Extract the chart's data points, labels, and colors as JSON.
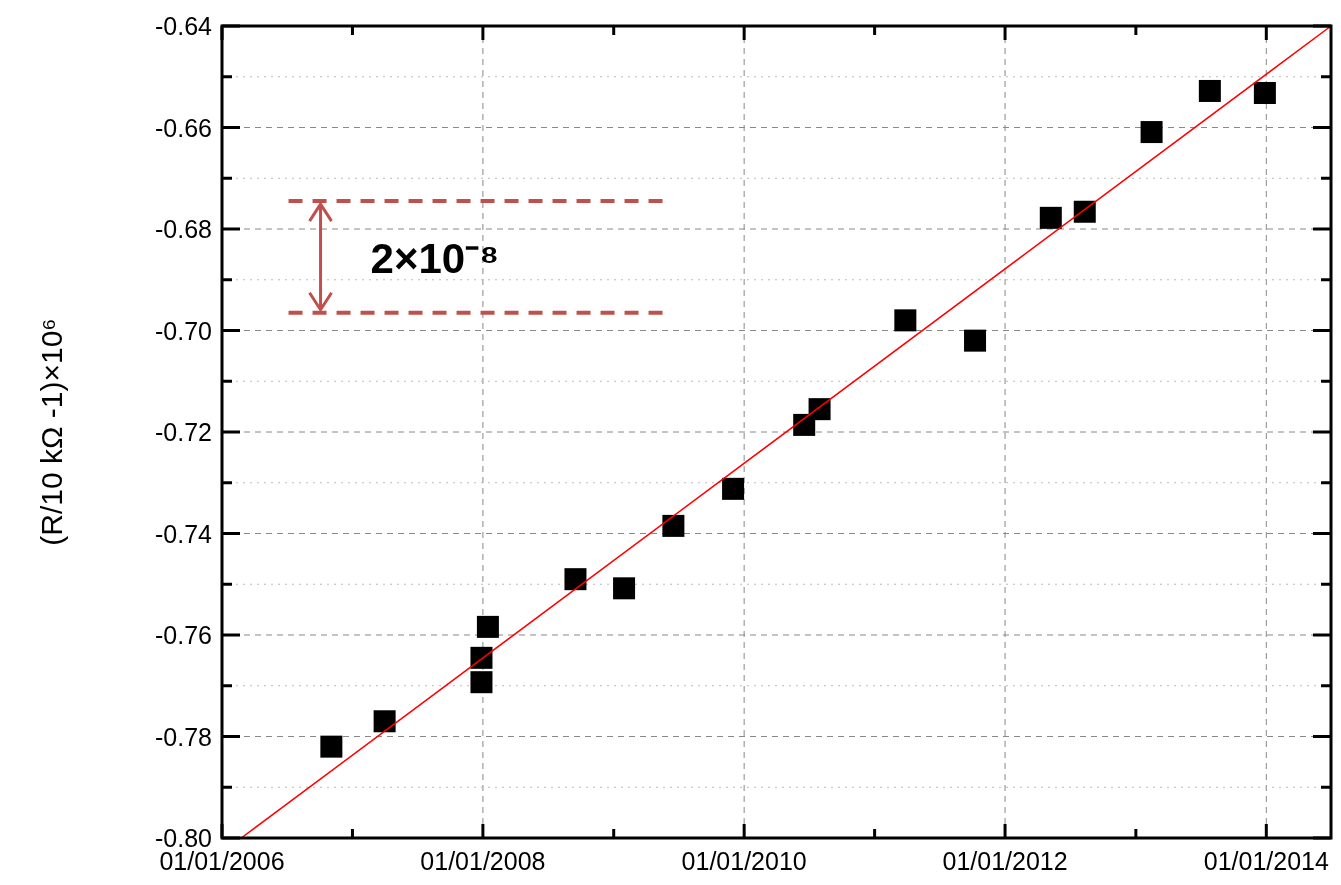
{
  "chart_data": {
    "type": "scatter",
    "ylabel": "(R/10 kΩ -1)×10⁶",
    "marker": "square",
    "grid": true,
    "xlim": [
      "2006-01-01",
      "2014-07-01"
    ],
    "xticks": [
      {
        "value": "2006-01-01",
        "label": "01/01/2006"
      },
      {
        "value": "2007-01-01",
        "label": null
      },
      {
        "value": "2008-01-01",
        "label": "01/01/2008"
      },
      {
        "value": "2009-01-01",
        "label": null
      },
      {
        "value": "2010-01-01",
        "label": "01/01/2010"
      },
      {
        "value": "2011-01-01",
        "label": null
      },
      {
        "value": "2012-01-01",
        "label": "01/01/2012"
      },
      {
        "value": "2013-01-01",
        "label": null
      },
      {
        "value": "2014-01-01",
        "label": "01/01/2014"
      }
    ],
    "ylim": [
      -0.8,
      -0.64
    ],
    "yticks": [
      {
        "value": -0.8,
        "label": "-0.80"
      },
      {
        "value": -0.79,
        "label": null
      },
      {
        "value": -0.78,
        "label": "-0.78"
      },
      {
        "value": -0.77,
        "label": null
      },
      {
        "value": -0.76,
        "label": "-0.76"
      },
      {
        "value": -0.75,
        "label": null
      },
      {
        "value": -0.74,
        "label": "-0.74"
      },
      {
        "value": -0.73,
        "label": null
      },
      {
        "value": -0.72,
        "label": "-0.72"
      },
      {
        "value": -0.71,
        "label": null
      },
      {
        "value": -0.7,
        "label": "-0.70"
      },
      {
        "value": -0.69,
        "label": null
      },
      {
        "value": -0.68,
        "label": "-0.68"
      },
      {
        "value": -0.67,
        "label": null
      },
      {
        "value": -0.66,
        "label": "-0.66"
      },
      {
        "value": -0.65,
        "label": null
      },
      {
        "value": -0.64,
        "label": "-0.64"
      }
    ],
    "series": [
      {
        "color": "#000000",
        "x": [
          "2006-11-03",
          "2007-04-01",
          "2007-12-28",
          "2007-12-28",
          "2008-01-15",
          "2008-09-16",
          "2009-01-30",
          "2009-06-17",
          "2009-12-01",
          "2010-06-18",
          "2010-07-31",
          "2011-03-28",
          "2011-10-09",
          "2012-05-08",
          "2012-08-11",
          "2013-02-14",
          "2013-07-27",
          "2013-12-28"
        ],
        "values": [
          -0.782,
          -0.777,
          -0.7645,
          -0.7693,
          -0.7584,
          -0.749,
          -0.7508,
          -0.7385,
          -0.7312,
          -0.7186,
          -0.7155,
          -0.698,
          -0.702,
          -0.6778,
          -0.6766,
          -0.6609,
          -0.6528,
          -0.6532
        ]
      },
      {
        "type": "line",
        "color": "#ff0000",
        "marker": "none",
        "x": [
          "2006-02-24",
          "2014-07-01"
        ],
        "values": [
          -0.8,
          -0.64
        ]
      }
    ],
    "ref_lines": [
      {
        "axis": "y",
        "value": -0.6745,
        "color": "#c0504d",
        "line_style": "dashed"
      },
      {
        "axis": "y",
        "value": -0.6965,
        "color": "#c0504d",
        "line_style": "dashed"
      }
    ],
    "annotations": [
      "2×10⁻⁸"
    ]
  }
}
